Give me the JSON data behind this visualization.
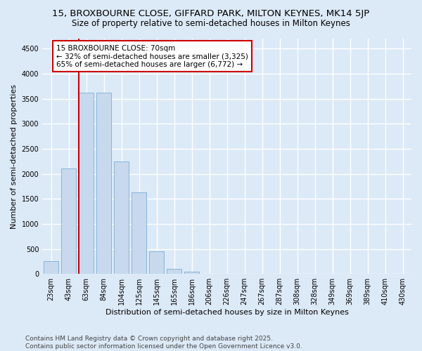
{
  "title_line1": "15, BROXBOURNE CLOSE, GIFFARD PARK, MILTON KEYNES, MK14 5JP",
  "title_line2": "Size of property relative to semi-detached houses in Milton Keynes",
  "xlabel": "Distribution of semi-detached houses by size in Milton Keynes",
  "ylabel": "Number of semi-detached properties",
  "footnote": "Contains HM Land Registry data © Crown copyright and database right 2025.\nContains public sector information licensed under the Open Government Licence v3.0.",
  "bar_labels": [
    "23sqm",
    "43sqm",
    "63sqm",
    "84sqm",
    "104sqm",
    "125sqm",
    "145sqm",
    "165sqm",
    "186sqm",
    "206sqm",
    "226sqm",
    "247sqm",
    "267sqm",
    "287sqm",
    "308sqm",
    "328sqm",
    "349sqm",
    "369sqm",
    "389sqm",
    "410sqm",
    "430sqm"
  ],
  "bar_values": [
    250,
    2100,
    3625,
    3625,
    2250,
    1625,
    450,
    100,
    50,
    0,
    0,
    0,
    0,
    0,
    0,
    0,
    0,
    0,
    0,
    0,
    0
  ],
  "bar_color": "#c8d9ed",
  "bar_edge_color": "#7aaed6",
  "vline_bin_index": 2,
  "vline_color": "#cc0000",
  "annotation_line1": "15 BROXBOURNE CLOSE: 70sqm",
  "annotation_line2": "← 32% of semi-detached houses are smaller (3,325)",
  "annotation_line3": "65% of semi-detached houses are larger (6,772) →",
  "ylim": [
    0,
    4700
  ],
  "yticks": [
    0,
    500,
    1000,
    1500,
    2000,
    2500,
    3000,
    3500,
    4000,
    4500
  ],
  "background_color": "#dce9f7",
  "grid_color": "#ffffff",
  "title_fontsize": 9.5,
  "subtitle_fontsize": 8.5,
  "axis_label_fontsize": 8,
  "tick_fontsize": 7,
  "annotation_fontsize": 7.5,
  "footnote_fontsize": 6.5,
  "ylabel_fontsize": 8
}
